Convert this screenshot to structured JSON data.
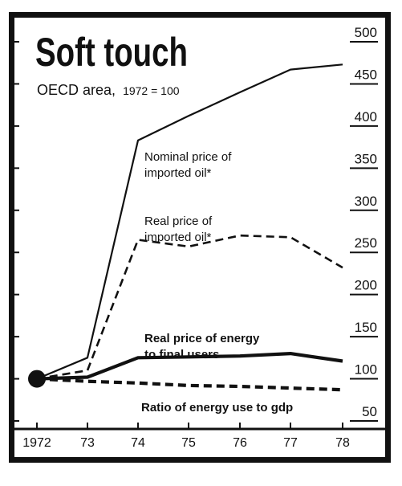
{
  "chart_data": {
    "type": "line",
    "title": "Soft touch",
    "subtitle_main": "OECD area,",
    "subtitle_base": "1972 = 100",
    "x": [
      "1972",
      "73",
      "74",
      "75",
      "76",
      "77",
      "78"
    ],
    "ylim": [
      50,
      500
    ],
    "yticks": [
      50,
      100,
      150,
      200,
      250,
      300,
      350,
      400,
      450,
      500
    ],
    "y_axis_side": "right",
    "grid": false,
    "series": [
      {
        "name": "Nominal price of imported oil*",
        "label_lines": [
          "Nominal price of",
          "imported oil*"
        ],
        "style": "solid",
        "values": [
          100,
          125,
          383,
          412,
          440,
          467,
          473
        ]
      },
      {
        "name": "Real price of imported oil*",
        "label_lines": [
          "Real price of",
          "imported oil*"
        ],
        "style": "dashed",
        "values": [
          100,
          110,
          265,
          257,
          270,
          268,
          232
        ]
      },
      {
        "name": "Real price of energy to final users",
        "label_lines": [
          "Real price of energy",
          "to final users"
        ],
        "style": "solid-thick",
        "values": [
          100,
          102,
          125,
          126,
          127,
          130,
          121
        ]
      },
      {
        "name": "Ratio of energy use to gdp",
        "label_lines": [
          "Ratio of energy use to gdp"
        ],
        "style": "dashed-thick",
        "values": [
          100,
          97,
          95,
          92,
          91,
          89,
          87
        ]
      }
    ],
    "colors": {
      "ink": "#111111",
      "background": "#ffffff"
    }
  }
}
